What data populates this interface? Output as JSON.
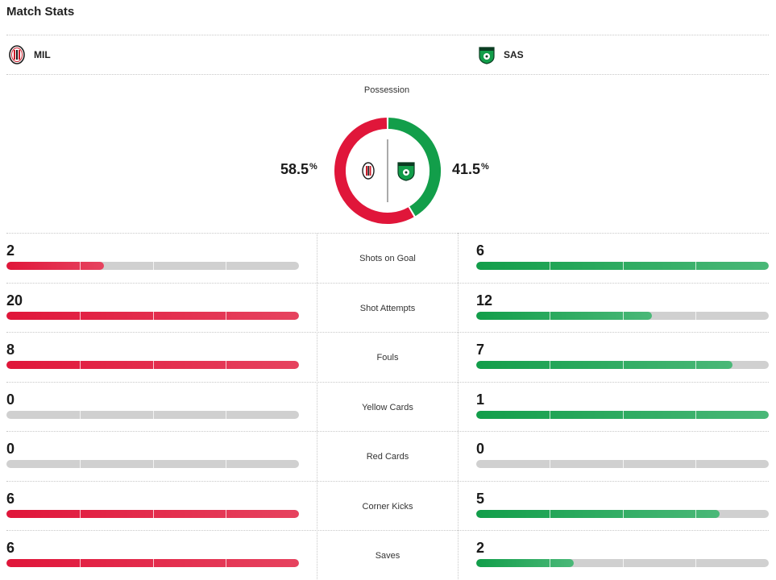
{
  "header": {
    "title": "Match Stats"
  },
  "teams": {
    "home": {
      "abbr": "MIL",
      "icon": "ac-milan-crest-icon",
      "color": "#e0163a"
    },
    "away": {
      "abbr": "SAS",
      "icon": "sassuolo-crest-icon",
      "color": "#129e4a"
    }
  },
  "possession": {
    "label": "Possession",
    "home_value": "58.5",
    "away_value": "41.5",
    "unit": "%",
    "home_fraction": 0.585,
    "away_fraction": 0.415
  },
  "stats": [
    {
      "label": "Shots on Goal",
      "home": "2",
      "away": "6",
      "home_fill": 0.333,
      "away_fill": 1.0
    },
    {
      "label": "Shot Attempts",
      "home": "20",
      "away": "12",
      "home_fill": 1.0,
      "away_fill": 0.6
    },
    {
      "label": "Fouls",
      "home": "8",
      "away": "7",
      "home_fill": 1.0,
      "away_fill": 0.875
    },
    {
      "label": "Yellow Cards",
      "home": "0",
      "away": "1",
      "home_fill": 0.0,
      "away_fill": 1.0
    },
    {
      "label": "Red Cards",
      "home": "0",
      "away": "0",
      "home_fill": 0.0,
      "away_fill": 0.0
    },
    {
      "label": "Corner Kicks",
      "home": "6",
      "away": "5",
      "home_fill": 1.0,
      "away_fill": 0.833
    },
    {
      "label": "Saves",
      "home": "6",
      "away": "2",
      "home_fill": 1.0,
      "away_fill": 0.333
    }
  ]
}
